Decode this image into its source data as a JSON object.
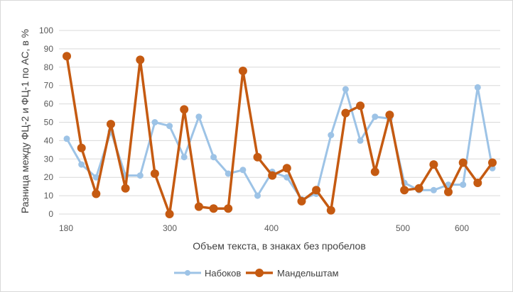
{
  "chart_data": {
    "type": "line",
    "xlabel": "Объем текста, в знаках без пробелов",
    "ylabel": "Разница между ФЦ-2 и ФЦ-1 по АС, в %",
    "ylim": [
      0,
      100
    ],
    "y_ticks": [
      0,
      10,
      20,
      30,
      40,
      50,
      60,
      70,
      80,
      90,
      100
    ],
    "x_ticks": [
      "180",
      "300",
      "400",
      "500",
      "600"
    ],
    "grid": "horizontal",
    "legend_position": "bottom",
    "series": [
      {
        "name": "Набоков",
        "color": "#9dc3e6",
        "values": [
          41,
          27,
          20,
          45,
          21,
          21,
          50,
          48,
          31,
          53,
          31,
          22,
          24,
          10,
          23,
          20,
          8,
          11,
          43,
          68,
          40,
          53,
          52,
          17,
          13,
          13,
          16,
          16,
          69,
          25
        ]
      },
      {
        "name": "Мандельштам",
        "color": "#c55a11",
        "values": [
          86,
          36,
          11,
          49,
          14,
          84,
          22,
          0,
          57,
          4,
          3,
          3,
          78,
          31,
          21,
          25,
          7,
          13,
          2,
          55,
          59,
          23,
          54,
          13,
          14,
          27,
          12,
          28,
          17,
          28
        ]
      }
    ]
  }
}
